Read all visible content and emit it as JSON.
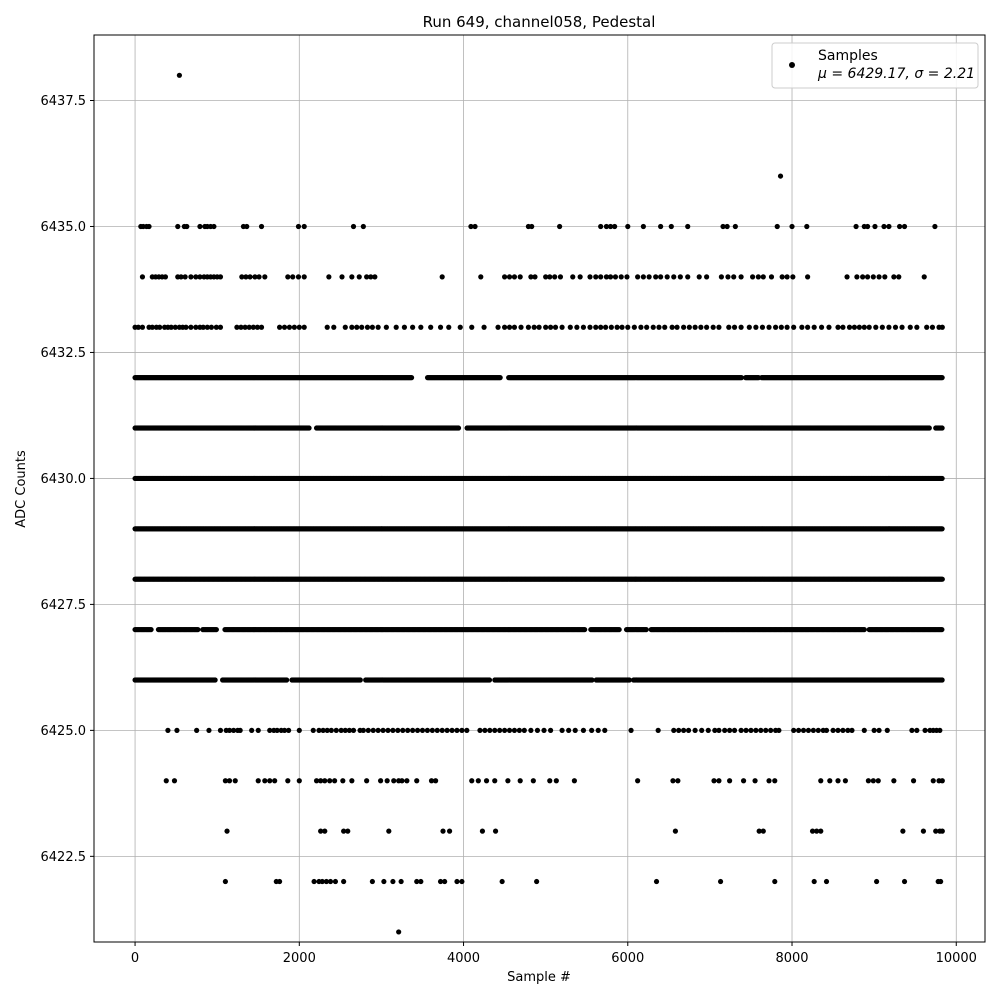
{
  "chart_data": {
    "type": "scatter",
    "title": "Run 649, channel058, Pedestal",
    "xlabel": "Sample #",
    "ylabel": "ADC Counts",
    "xlim": [
      -500,
      10350
    ],
    "ylim": [
      6420.8,
      6438.8
    ],
    "grid": true,
    "legend_position": "top-right",
    "xticks": [
      0,
      2000,
      4000,
      6000,
      8000,
      10000
    ],
    "xtick_labels": [
      "0",
      "2000",
      "4000",
      "6000",
      "8000",
      "10000"
    ],
    "yticks": [
      6422.5,
      6425.0,
      6427.5,
      6430.0,
      6432.5,
      6435.0,
      6437.5
    ],
    "ytick_labels": [
      "6422.5",
      "6425.0",
      "6427.5",
      "6430.0",
      "6432.5",
      "6435.0",
      "6437.5"
    ],
    "series": [
      {
        "name": "Samples",
        "legend_stat_text": "μ = 6429.17, σ = 2.21",
        "mean": 6429.17,
        "sigma": 2.21,
        "color": "#000000",
        "x_range": [
          0,
          9830
        ],
        "levels": [
          {
            "y": 6438,
            "x": [
              540
            ]
          },
          {
            "y": 6436,
            "x": [
              7860
            ]
          },
          {
            "y": 6435,
            "x": [
              70,
              100,
              140,
              170,
              520,
              600,
              630,
              790,
              850,
              880,
              920,
              960,
              1320,
              1360,
              1540,
              1990,
              2060,
              2660,
              2780,
              4090,
              4140,
              4790,
              4830,
              5170,
              5670,
              5740,
              5790,
              5840,
              6000,
              6190,
              6400,
              6530,
              6730,
              7160,
              7210,
              7310,
              7820,
              8000,
              8180,
              8780,
              8880,
              8920,
              9010,
              9120,
              9180,
              9310,
              9370,
              9740
            ]
          },
          {
            "y": 6434,
            "x": [
              90,
              210,
              250,
              290,
              330,
              370,
              520,
              560,
              610,
              680,
              740,
              790,
              840,
              880,
              920,
              960,
              1000,
              1040,
              1300,
              1350,
              1400,
              1460,
              1510,
              1580,
              1860,
              1920,
              1990,
              2060,
              2360,
              2520,
              2640,
              2730,
              2820,
              2870,
              2920,
              3740,
              4210,
              4500,
              4560,
              4620,
              4690,
              4820,
              4870,
              5000,
              5050,
              5110,
              5180,
              5330,
              5420,
              5540,
              5610,
              5670,
              5740,
              5790,
              5850,
              5920,
              5990,
              6120,
              6190,
              6260,
              6340,
              6400,
              6480,
              6560,
              6640,
              6730,
              6870,
              6960,
              7140,
              7220,
              7290,
              7380,
              7520,
              7590,
              7650,
              7750,
              7880,
              7940,
              8010,
              8190,
              8670,
              8790,
              8860,
              8920,
              8990,
              9060,
              9130,
              9240,
              9300,
              9610
            ]
          },
          {
            "y": 6433,
            "x": [
              0,
              40,
              90,
              170,
              210,
              260,
              300,
              360,
              400,
              440,
              490,
              540,
              580,
              620,
              680,
              740,
              790,
              830,
              880,
              930,
              990,
              1040,
              1240,
              1290,
              1340,
              1390,
              1440,
              1490,
              1540,
              1760,
              1820,
              1880,
              1940,
              2000,
              2060,
              2340,
              2420,
              2560,
              2640,
              2700,
              2760,
              2830,
              2890,
              2960,
              3060,
              3180,
              3280,
              3380,
              3480,
              3600,
              3720,
              3820,
              3960,
              4100,
              4250,
              4420,
              4500,
              4560,
              4620,
              4700,
              4790,
              4860,
              4920,
              5000,
              5060,
              5120,
              5200,
              5300,
              5380,
              5460,
              5540,
              5610,
              5670,
              5730,
              5800,
              5870,
              5930,
              6000,
              6080,
              6160,
              6230,
              6310,
              6380,
              6450,
              6540,
              6600,
              6680,
              6750,
              6820,
              6890,
              6960,
              7040,
              7110,
              7230,
              7300,
              7380,
              7480,
              7560,
              7640,
              7720,
              7800,
              7870,
              7940,
              8020,
              8120,
              8190,
              8270,
              8360,
              8450,
              8560,
              8620,
              8700,
              8760,
              8820,
              8880,
              8940,
              9020,
              9100,
              9180,
              9260,
              9340,
              9440,
              9520,
              9640,
              9710,
              9790,
              9830
            ]
          },
          {
            "y": 6432,
            "dense": true,
            "from": 0,
            "to": 9830,
            "step": 13,
            "gaps": [
              [
                3370,
                3560
              ],
              [
                4450,
                4540
              ],
              [
                7390,
                7430
              ],
              [
                7600,
                7630
              ]
            ]
          },
          {
            "y": 6431,
            "dense": true,
            "from": 0,
            "to": 9830,
            "step": 13,
            "gaps": [
              [
                2120,
                2200
              ],
              [
                3950,
                4040
              ],
              [
                9680,
                9740
              ]
            ]
          },
          {
            "y": 6430,
            "dense": true,
            "from": 0,
            "to": 9830,
            "step": 9,
            "gaps": []
          },
          {
            "y": 6429,
            "dense": true,
            "from": 0,
            "to": 9830,
            "step": 9,
            "gaps": []
          },
          {
            "y": 6428,
            "dense": true,
            "from": 0,
            "to": 9830,
            "step": 10,
            "gaps": []
          },
          {
            "y": 6427,
            "dense": true,
            "from": 0,
            "to": 9830,
            "step": 15,
            "gaps": [
              [
                200,
                280
              ],
              [
                770,
                820
              ],
              [
                1000,
                1080
              ],
              [
                5480,
                5540
              ],
              [
                5910,
                5980
              ],
              [
                6240,
                6280
              ],
              [
                8890,
                8930
              ]
            ]
          },
          {
            "y": 6426,
            "dense": true,
            "from": 0,
            "to": 9830,
            "step": 13,
            "gaps": [
              [
                980,
                1060
              ],
              [
                1850,
                1910
              ],
              [
                2750,
                2800
              ],
              [
                4320,
                4370
              ],
              [
                5570,
                5610
              ],
              [
                6020,
                6060
              ]
            ]
          },
          {
            "y": 6425,
            "x": [
              400,
              510,
              750,
              900,
              1040,
              1110,
              1150,
              1200,
              1250,
              1280,
              1420,
              1500,
              1640,
              1690,
              1730,
              1780,
              1820,
              1870,
              2000,
              2170,
              2240,
              2290,
              2340,
              2390,
              2450,
              2510,
              2560,
              2610,
              2660,
              2740,
              2780,
              2840,
              2900,
              2960,
              3020,
              3080,
              3140,
              3200,
              3260,
              3320,
              3380,
              3440,
              3500,
              3560,
              3620,
              3680,
              3740,
              3800,
              3860,
              3920,
              3980,
              4040,
              4200,
              4260,
              4320,
              4380,
              4440,
              4500,
              4560,
              4620,
              4680,
              4740,
              4820,
              4900,
              4980,
              5060,
              5200,
              5280,
              5360,
              5460,
              5560,
              5640,
              5720,
              6040,
              6370,
              6560,
              6620,
              6680,
              6740,
              6820,
              6900,
              6980,
              7060,
              7110,
              7180,
              7240,
              7300,
              7380,
              7440,
              7500,
              7560,
              7620,
              7680,
              7740,
              7800,
              7840,
              8020,
              8080,
              8140,
              8200,
              8260,
              8320,
              8380,
              8420,
              8500,
              8560,
              8620,
              8680,
              8730,
              8880,
              9000,
              9060,
              9160,
              9460,
              9520,
              9620,
              9680,
              9720,
              9760,
              9800
            ]
          },
          {
            "y": 6424,
            "x": [
              380,
              480,
              1100,
              1150,
              1220,
              1500,
              1580,
              1640,
              1700,
              1860,
              2000,
              2210,
              2260,
              2310,
              2370,
              2430,
              2530,
              2640,
              2820,
              2990,
              3070,
              3150,
              3210,
              3250,
              3310,
              3430,
              3610,
              3660,
              4100,
              4180,
              4280,
              4380,
              4540,
              4690,
              4850,
              5050,
              5130,
              5350,
              6120,
              6550,
              6610,
              7050,
              7110,
              7240,
              7410,
              7550,
              7720,
              7790,
              8350,
              8460,
              8560,
              8650,
              8930,
              8990,
              9050,
              9240,
              9480,
              9720,
              9790,
              9830
            ]
          },
          {
            "y": 6423,
            "x": [
              1120,
              2260,
              2310,
              2540,
              2590,
              3090,
              3750,
              3830,
              4230,
              4390,
              6580,
              7600,
              7650,
              8250,
              8300,
              8350,
              9350,
              9600,
              9750,
              9800,
              9830
            ]
          },
          {
            "y": 6422,
            "x": [
              1100,
              1720,
              1760,
              2180,
              2240,
              2280,
              2330,
              2380,
              2440,
              2540,
              2890,
              3030,
              3140,
              3240,
              3430,
              3480,
              3720,
              3770,
              3920,
              3980,
              4470,
              4890,
              6350,
              7130,
              7790,
              8270,
              8420,
              9030,
              9370,
              9780,
              9810
            ]
          },
          {
            "y": 6421,
            "x": [
              3210
            ]
          }
        ]
      }
    ]
  }
}
